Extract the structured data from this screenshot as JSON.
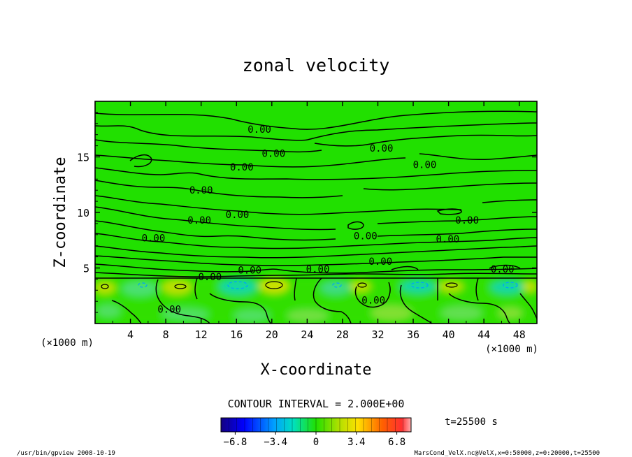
{
  "chart_data": {
    "type": "heatmap",
    "title": "zonal velocity",
    "xlabel": "X-coordinate",
    "ylabel": "Z-coordinate",
    "x_unit_left": "(×1000 m)",
    "x_unit_right": "(×1000 m)",
    "xlim": [
      0,
      50
    ],
    "ylim": [
      0,
      20
    ],
    "x_ticks": [
      4,
      8,
      12,
      16,
      20,
      24,
      28,
      32,
      36,
      40,
      44,
      48
    ],
    "y_ticks": [
      5,
      10,
      15
    ],
    "contour_label": "0.00",
    "contour_labels": [
      {
        "x": 18.6,
        "z": 17.5
      },
      {
        "x": 20.2,
        "z": 15.3
      },
      {
        "x": 32.4,
        "z": 15.8
      },
      {
        "x": 16.6,
        "z": 14.1
      },
      {
        "x": 37.3,
        "z": 14.3
      },
      {
        "x": 12.0,
        "z": 12.0
      },
      {
        "x": 11.8,
        "z": 9.3
      },
      {
        "x": 16.1,
        "z": 9.8
      },
      {
        "x": 42.1,
        "z": 9.3
      },
      {
        "x": 6.6,
        "z": 7.7
      },
      {
        "x": 30.6,
        "z": 7.9
      },
      {
        "x": 39.9,
        "z": 7.6
      },
      {
        "x": 17.5,
        "z": 4.8
      },
      {
        "x": 25.2,
        "z": 4.9
      },
      {
        "x": 32.3,
        "z": 5.6
      },
      {
        "x": 46.1,
        "z": 4.9
      },
      {
        "x": 13.0,
        "z": 4.2
      },
      {
        "x": 31.5,
        "z": 2.1
      },
      {
        "x": 8.4,
        "z": 1.3
      }
    ],
    "contour_interval_text": "CONTOUR INTERVAL = 2.000E+00",
    "colorbar": {
      "min": -8,
      "max": 8,
      "tick_labels": [
        "−6.8",
        "−3.4",
        "0",
        "3.4",
        "6.8"
      ],
      "tick_values": [
        -6.8,
        -3.4,
        0,
        3.4,
        6.8
      ]
    },
    "time_label": "t=25500 s",
    "colors": {
      "field_background": "#21e000",
      "positive_anomaly": "#b7e000",
      "negative_anomaly": "#19d8a0"
    }
  },
  "footer": {
    "left": "/usr/bin/gpview  2008-10-19",
    "right": "MarsCond_VelX.nc@VelX,x=0:50000,z=0:20000,t=25500"
  }
}
